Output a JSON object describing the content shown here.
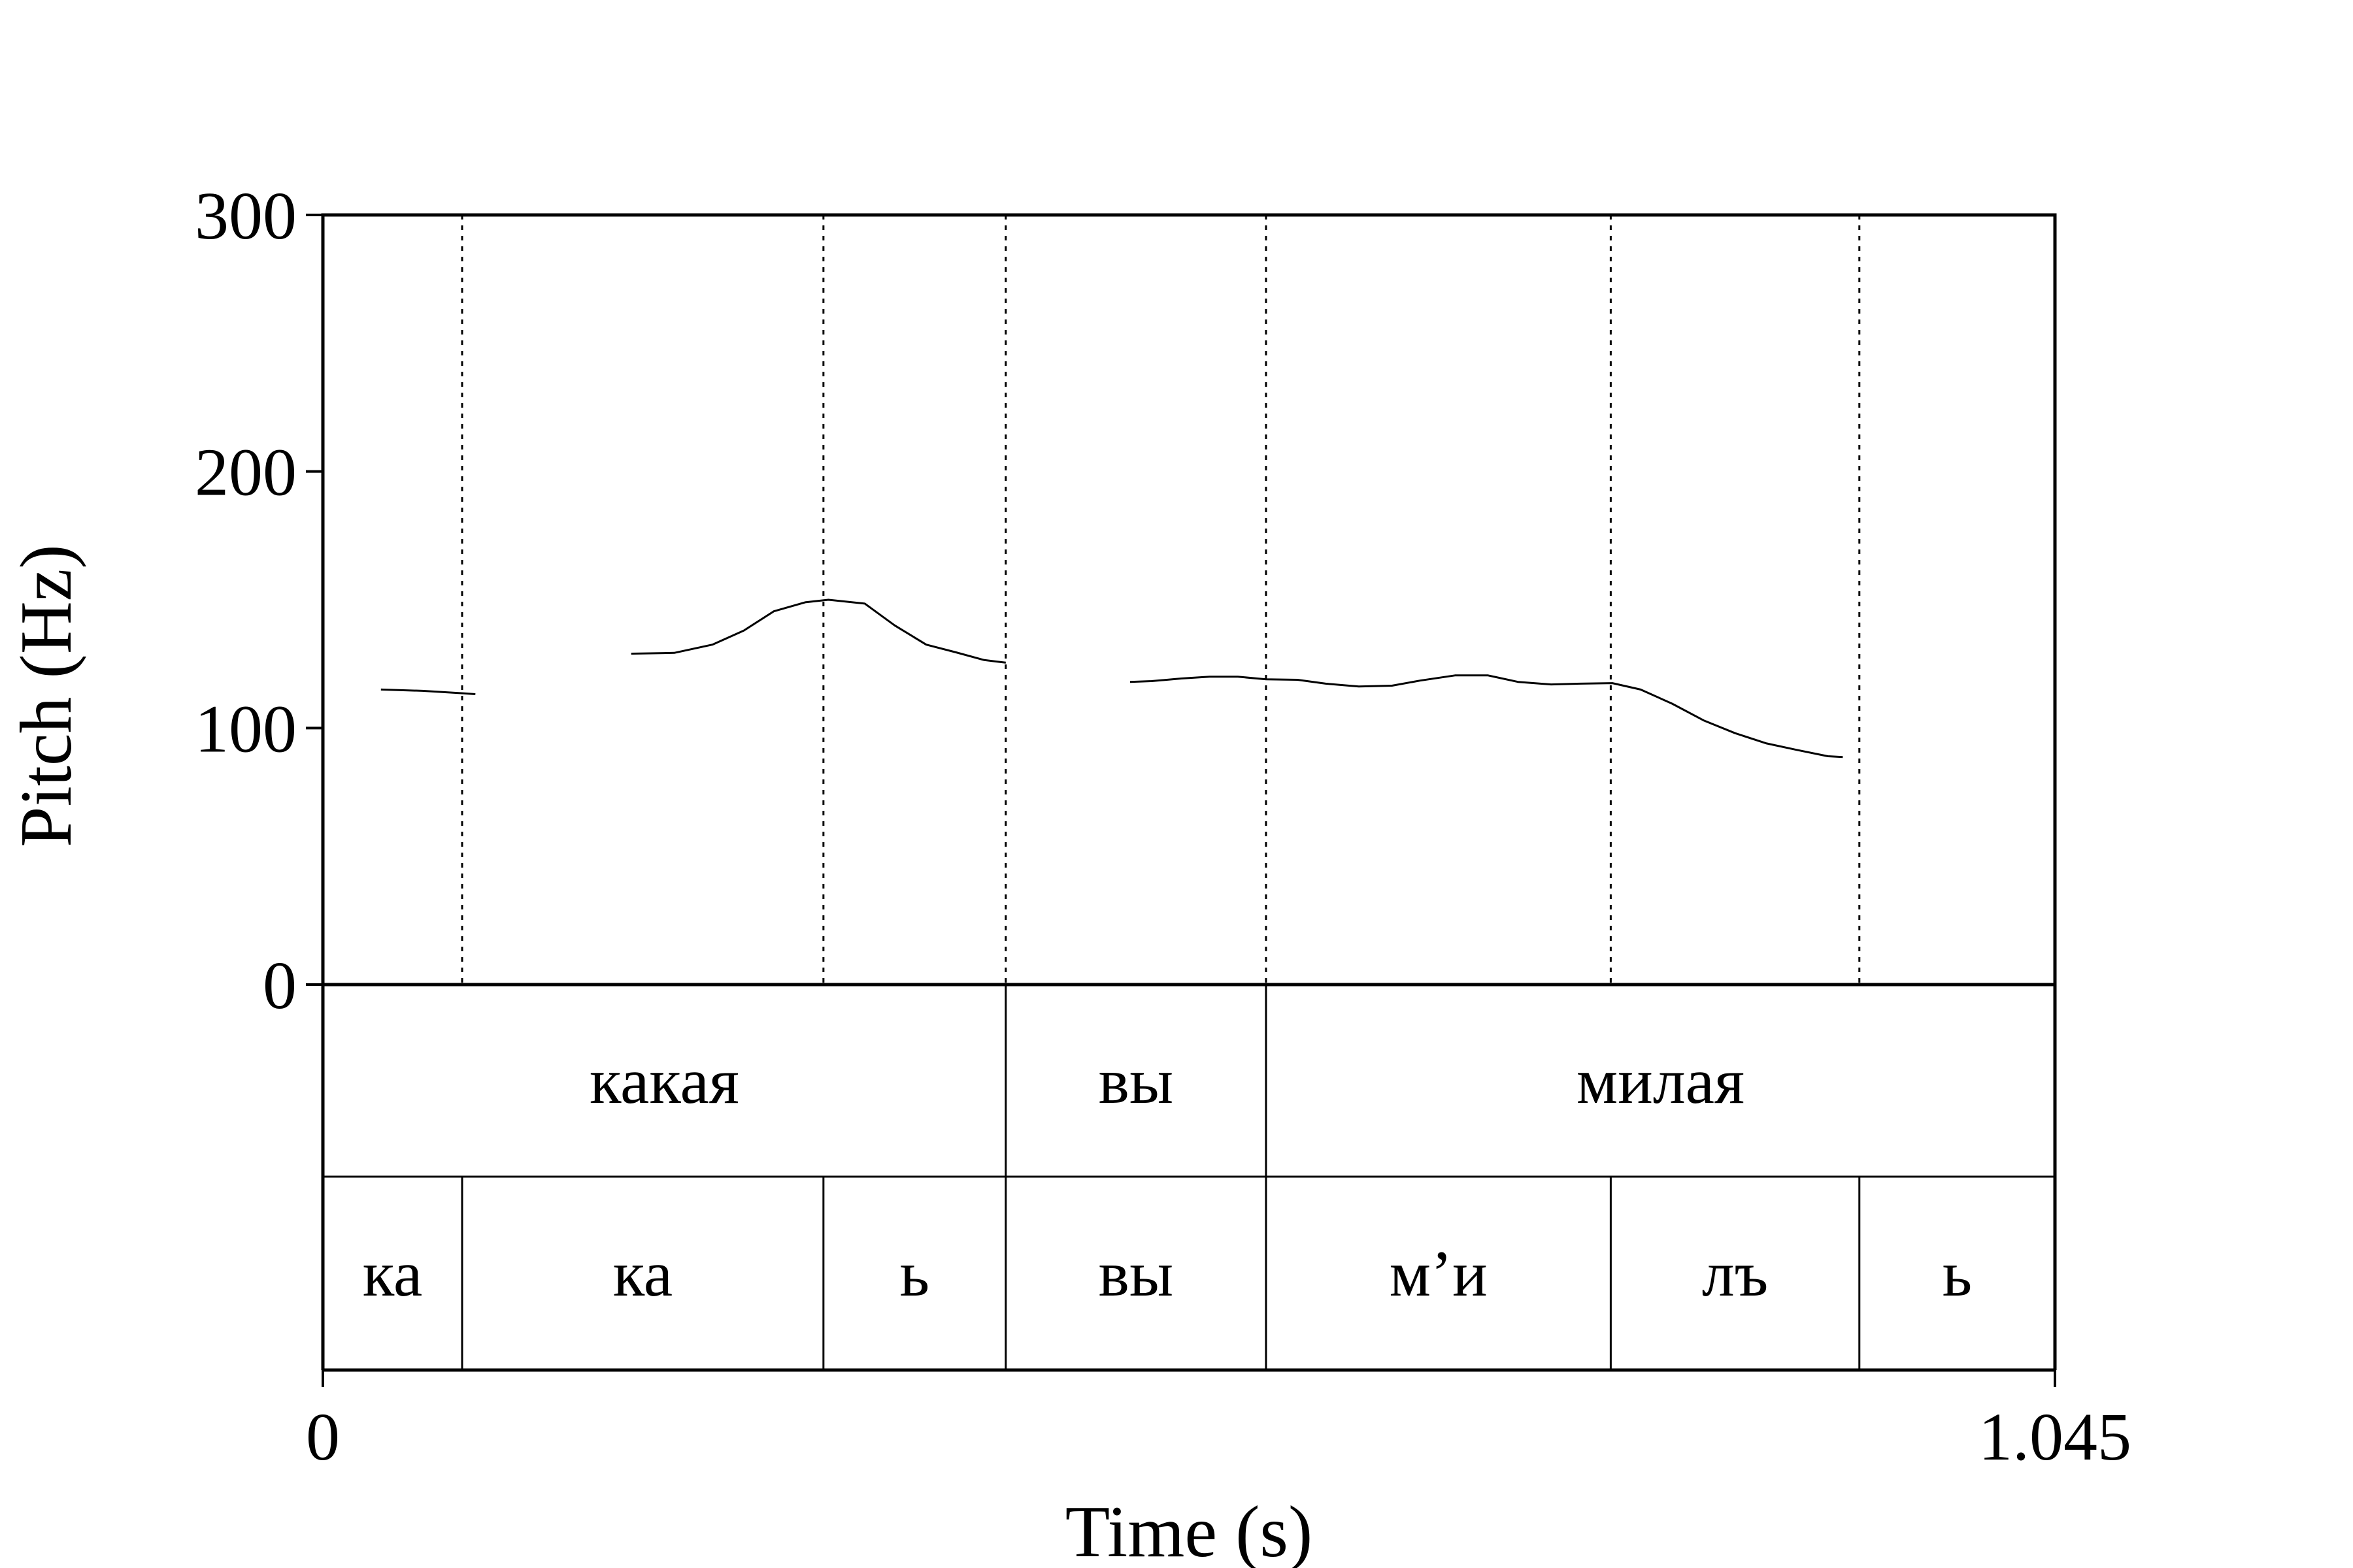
{
  "chart_data": {
    "type": "line",
    "xlabel": "Time (s)",
    "ylabel": "Pitch (Hz)",
    "xlim": [
      0,
      1.045
    ],
    "ylim": [
      0,
      300
    ],
    "x_ticks": [
      "0",
      "1.045"
    ],
    "y_ticks": [
      "0",
      "100",
      "200",
      "300"
    ],
    "grid": false,
    "boundaries": [
      0.084,
      0.302,
      0.412,
      0.569,
      0.777,
      0.927
    ],
    "series": [
      {
        "values_segments": [
          [
            [
              0.035,
              115
            ],
            [
              0.06,
              114.5
            ],
            [
              0.085,
              113.5
            ],
            [
              0.092,
              113.2
            ]
          ],
          [
            [
              0.186,
              129
            ],
            [
              0.212,
              129.3
            ],
            [
              0.235,
              132.5
            ],
            [
              0.254,
              138
            ],
            [
              0.272,
              145.5
            ],
            [
              0.291,
              149
            ],
            [
              0.305,
              150
            ],
            [
              0.327,
              148.5
            ],
            [
              0.345,
              140
            ],
            [
              0.364,
              132.5
            ],
            [
              0.382,
              129.5
            ],
            [
              0.399,
              126.5
            ],
            [
              0.409,
              125.7
            ],
            [
              0.412,
              125.5
            ]
          ],
          [
            [
              0.487,
              118
            ],
            [
              0.5,
              118.3
            ],
            [
              0.518,
              119.3
            ],
            [
              0.535,
              120
            ],
            [
              0.552,
              120
            ],
            [
              0.569,
              119
            ],
            [
              0.588,
              118.8
            ],
            [
              0.605,
              117.3
            ],
            [
              0.625,
              116.2
            ],
            [
              0.645,
              116.5
            ],
            [
              0.662,
              118.5
            ],
            [
              0.683,
              120.5
            ],
            [
              0.703,
              120.5
            ],
            [
              0.721,
              118
            ],
            [
              0.741,
              117
            ],
            [
              0.759,
              117.3
            ],
            [
              0.778,
              117.5
            ],
            [
              0.795,
              115
            ],
            [
              0.814,
              109.5
            ],
            [
              0.833,
              103
            ],
            [
              0.852,
              98
            ],
            [
              0.871,
              94
            ],
            [
              0.889,
              91.5
            ],
            [
              0.908,
              89
            ],
            [
              0.917,
              88.7
            ]
          ]
        ]
      }
    ]
  },
  "tiers": [
    {
      "intervals": [
        {
          "start": 0,
          "end": 0.412,
          "label": "какая"
        },
        {
          "start": 0.412,
          "end": 0.569,
          "label": "вы"
        },
        {
          "start": 0.569,
          "end": 1.045,
          "label": "милая"
        }
      ]
    },
    {
      "intervals": [
        {
          "start": 0,
          "end": 0.084,
          "label": "ка"
        },
        {
          "start": 0.084,
          "end": 0.302,
          "label": "ка"
        },
        {
          "start": 0.302,
          "end": 0.412,
          "label": "ь"
        },
        {
          "start": 0.412,
          "end": 0.569,
          "label": "вы"
        },
        {
          "start": 0.569,
          "end": 0.777,
          "label": "м’и"
        },
        {
          "start": 0.777,
          "end": 0.927,
          "label": "лъ"
        },
        {
          "start": 0.927,
          "end": 1.045,
          "label": "ь"
        }
      ]
    }
  ]
}
